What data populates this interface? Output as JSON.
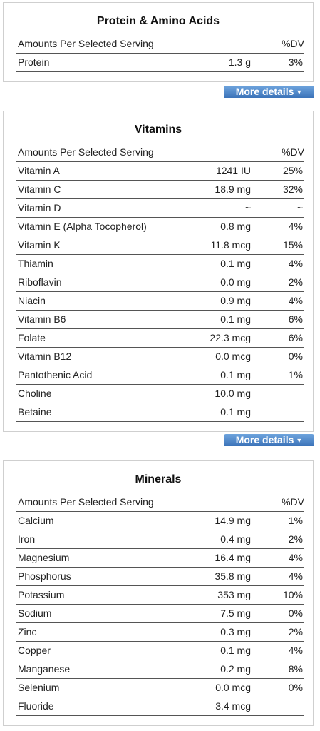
{
  "protein": {
    "title": "Protein & Amino Acids",
    "header_left": "Amounts Per Selected Serving",
    "header_right": "%DV",
    "rows": [
      {
        "name": "Protein",
        "amount": "1.3 g",
        "dv": "3%"
      }
    ],
    "more_label": "More details"
  },
  "vitamins": {
    "title": "Vitamins",
    "header_left": "Amounts Per Selected Serving",
    "header_right": "%DV",
    "rows": [
      {
        "name": "Vitamin A",
        "amount": "1241 IU",
        "dv": "25%"
      },
      {
        "name": "Vitamin C",
        "amount": "18.9 mg",
        "dv": "32%"
      },
      {
        "name": "Vitamin D",
        "amount": "~",
        "dv": "~"
      },
      {
        "name": "Vitamin E (Alpha Tocopherol)",
        "amount": "0.8 mg",
        "dv": "4%"
      },
      {
        "name": "Vitamin K",
        "amount": "11.8 mcg",
        "dv": "15%"
      },
      {
        "name": "Thiamin",
        "amount": "0.1 mg",
        "dv": "4%"
      },
      {
        "name": "Riboflavin",
        "amount": "0.0 mg",
        "dv": "2%"
      },
      {
        "name": "Niacin",
        "amount": "0.9 mg",
        "dv": "4%"
      },
      {
        "name": "Vitamin B6",
        "amount": "0.1 mg",
        "dv": "6%"
      },
      {
        "name": "Folate",
        "amount": "22.3 mcg",
        "dv": "6%"
      },
      {
        "name": "Vitamin B12",
        "amount": "0.0 mcg",
        "dv": "0%"
      },
      {
        "name": "Pantothenic Acid",
        "amount": "0.1 mg",
        "dv": "1%"
      },
      {
        "name": "Choline",
        "amount": "10.0 mg",
        "dv": ""
      },
      {
        "name": "Betaine",
        "amount": "0.1 mg",
        "dv": ""
      }
    ],
    "more_label": "More details"
  },
  "minerals": {
    "title": "Minerals",
    "header_left": "Amounts Per Selected Serving",
    "header_right": "%DV",
    "rows": [
      {
        "name": "Calcium",
        "amount": "14.9 mg",
        "dv": "1%"
      },
      {
        "name": "Iron",
        "amount": "0.4 mg",
        "dv": "2%"
      },
      {
        "name": "Magnesium",
        "amount": "16.4 mg",
        "dv": "4%"
      },
      {
        "name": "Phosphorus",
        "amount": "35.8 mg",
        "dv": "4%"
      },
      {
        "name": "Potassium",
        "amount": "353 mg",
        "dv": "10%"
      },
      {
        "name": "Sodium",
        "amount": "7.5 mg",
        "dv": "0%"
      },
      {
        "name": "Zinc",
        "amount": "0.3 mg",
        "dv": "2%"
      },
      {
        "name": "Copper",
        "amount": "0.1 mg",
        "dv": "4%"
      },
      {
        "name": "Manganese",
        "amount": "0.2 mg",
        "dv": "8%"
      },
      {
        "name": "Selenium",
        "amount": "0.0 mcg",
        "dv": "0%"
      },
      {
        "name": "Fluoride",
        "amount": "3.4 mcg",
        "dv": ""
      }
    ]
  },
  "icons": {
    "more_arrow": "caret-down-icon"
  },
  "colors": {
    "more_button": "#4a85c8",
    "rule": "#555555",
    "panel_border": "#cfcfcf"
  }
}
